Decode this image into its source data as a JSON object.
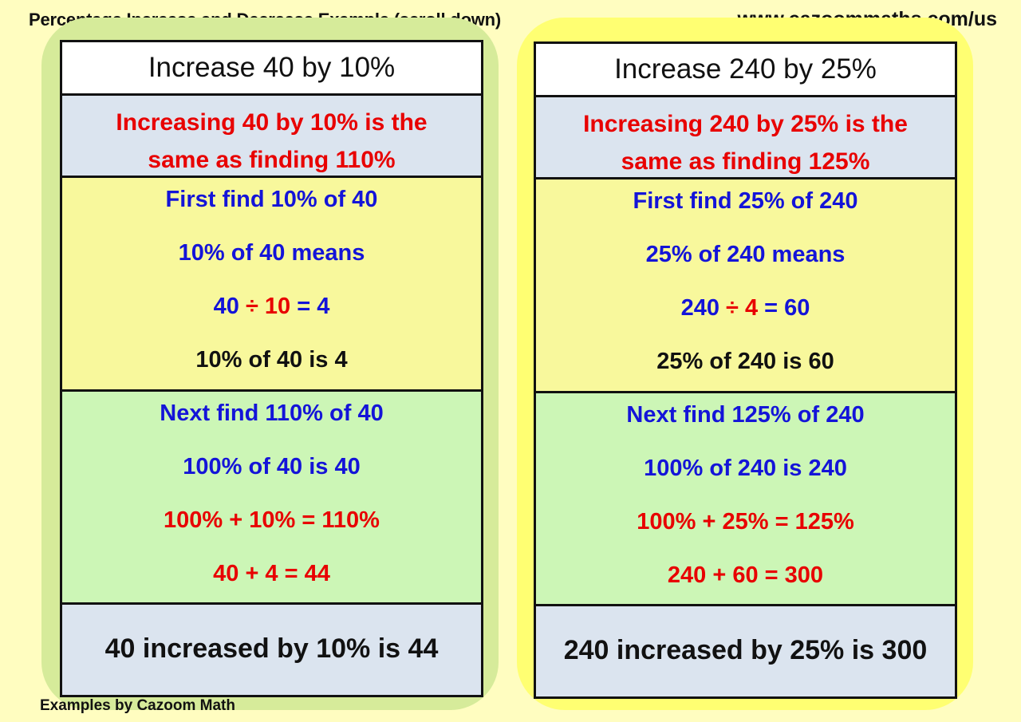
{
  "header": {
    "title": "Percentage Increase and Decrease Example (scroll down)",
    "url": "www.cazoommaths.com/us"
  },
  "footer": "Examples by Cazoom Math",
  "colors": {
    "red": "#e80000",
    "blue": "#1414d8",
    "black": "#111111",
    "left_backdrop": "#d6eb9a",
    "right_backdrop": "#ffff72"
  },
  "examples": [
    {
      "title": "Increase 40 by 10%",
      "intro_line1": "Increasing 40 by 10% is the",
      "intro_line2": "same as finding 110%",
      "step1": [
        [
          {
            "t": "First find 10% of 40",
            "c": "blue"
          }
        ],
        [
          {
            "t": "10% of 40 means",
            "c": "blue"
          }
        ],
        [
          {
            "t": "40 ",
            "c": "blue"
          },
          {
            "t": "÷ 10",
            "c": "red"
          },
          {
            "t": " = 4",
            "c": "blue"
          }
        ],
        [
          {
            "t": "10% of 40 is 4",
            "c": "black"
          }
        ]
      ],
      "step2": [
        [
          {
            "t": "Next find 110% of 40",
            "c": "blue"
          }
        ],
        [
          {
            "t": "100% of 40 is 40",
            "c": "blue"
          }
        ],
        [
          {
            "t": "100% + 10% = 110%",
            "c": "red"
          }
        ],
        [
          {
            "t": "40 + 4 = 44",
            "c": "red"
          }
        ]
      ],
      "result": "40 increased by 10% is 44"
    },
    {
      "title": "Increase 240 by 25%",
      "intro_line1": "Increasing 240 by 25% is the",
      "intro_line2": "same as finding 125%",
      "step1": [
        [
          {
            "t": "First find 25% of 240",
            "c": "blue"
          }
        ],
        [
          {
            "t": "25% of 240 means",
            "c": "blue"
          }
        ],
        [
          {
            "t": "240 ",
            "c": "blue"
          },
          {
            "t": "÷ 4",
            "c": "red"
          },
          {
            "t": " = 60",
            "c": "blue"
          }
        ],
        [
          {
            "t": "25% of 240 is 60",
            "c": "black"
          }
        ]
      ],
      "step2": [
        [
          {
            "t": "Next find 125% of 240",
            "c": "blue"
          }
        ],
        [
          {
            "t": "100% of 240 is 240",
            "c": "blue"
          }
        ],
        [
          {
            "t": "100% + 25% = 125%",
            "c": "red"
          }
        ],
        [
          {
            "t": "240 + 60 = 300",
            "c": "red"
          }
        ]
      ],
      "result": "240 increased by 25% is 300"
    }
  ]
}
